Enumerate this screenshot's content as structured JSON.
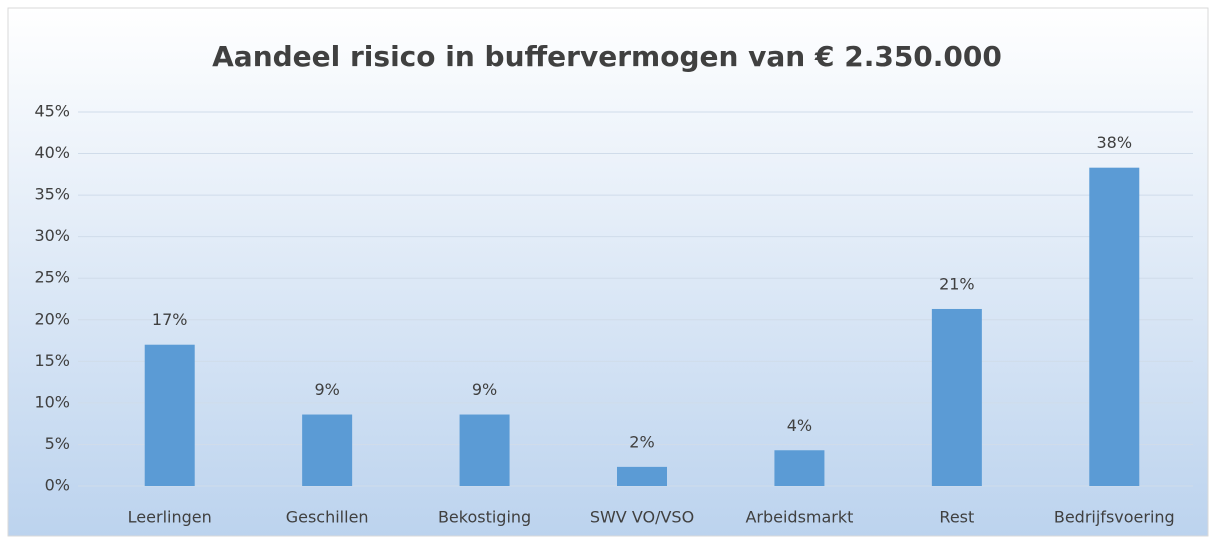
{
  "chart_data": {
    "type": "bar",
    "title": "Aandeel risico in buffervermogen van € 2.350.000",
    "categories": [
      "Leerlingen",
      "Geschillen",
      "Bekostiging",
      "SWV VO/VSO",
      "Arbeidsmarkt",
      "Rest",
      "Bedrijfsvoering"
    ],
    "values": [
      17.0,
      8.6,
      8.6,
      2.3,
      4.3,
      21.3,
      38.3
    ],
    "value_labels": [
      "17%",
      "9%",
      "9%",
      "2%",
      "4%",
      "21%",
      "38%"
    ],
    "color": "#5b9bd5",
    "ylim": [
      0,
      45
    ],
    "yticks": [
      {
        "value": 0,
        "label": "0%"
      },
      {
        "value": 5,
        "label": "5%"
      },
      {
        "value": 10,
        "label": "10%"
      },
      {
        "value": 15,
        "label": "15%"
      },
      {
        "value": 20,
        "label": "20%"
      },
      {
        "value": 25,
        "label": "25%"
      },
      {
        "value": 30,
        "label": "30%"
      },
      {
        "value": 35,
        "label": "35%"
      },
      {
        "value": 40,
        "label": "40%"
      },
      {
        "value": 45,
        "label": "45%"
      }
    ],
    "grid": true
  }
}
